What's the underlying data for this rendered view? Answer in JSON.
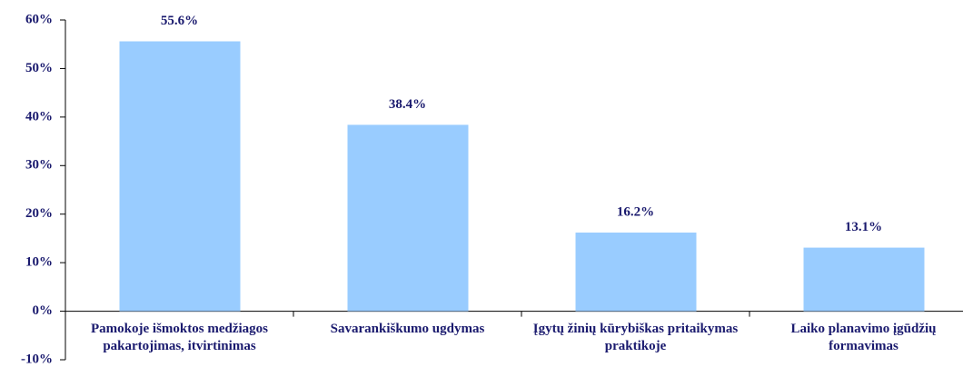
{
  "chart_data": {
    "type": "bar",
    "categories": [
      "Pamokoje išmoktos medžiagos pakartojimas, itvirtinimas",
      "Savarankiškumo ugdymas",
      "Įgytų žinių kūrybiškas pritaikymas praktikoje",
      "Laiko planavimo įgūdžių formavimas"
    ],
    "values": [
      55.6,
      38.4,
      16.2,
      13.1
    ],
    "value_labels": [
      "55.6%",
      "38.4%",
      "16.2%",
      "13.1%"
    ],
    "color": "#99ccff",
    "ylim": [
      -10,
      60
    ],
    "yticks": [
      {
        "value": -10,
        "label": "-10%"
      },
      {
        "value": 0,
        "label": "0%"
      },
      {
        "value": 10,
        "label": "10%"
      },
      {
        "value": 20,
        "label": "20%"
      },
      {
        "value": 30,
        "label": "30%"
      },
      {
        "value": 40,
        "label": "40%"
      },
      {
        "value": 50,
        "label": "50%"
      },
      {
        "value": 60,
        "label": "60%"
      }
    ]
  }
}
